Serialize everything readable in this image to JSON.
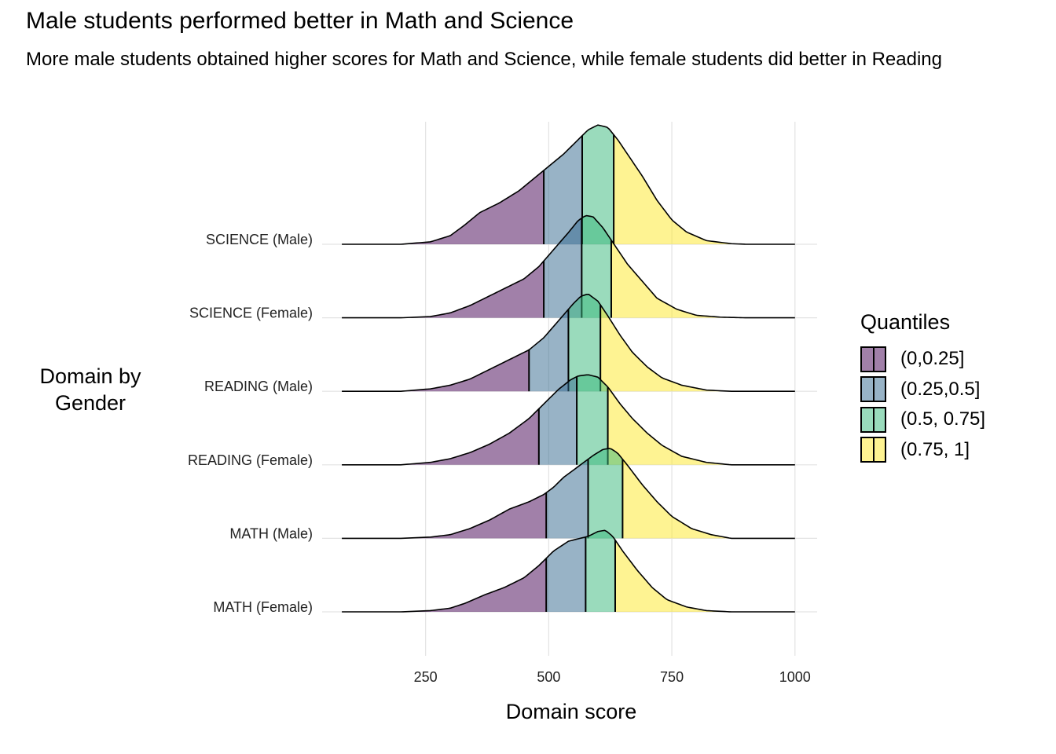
{
  "chart_data": {
    "type": "ridgeline",
    "title": "Male students performed better in Math and Science",
    "subtitle": "More male students obtained higher scores for Math and Science, while female students did better in Reading",
    "xlabel": "Domain score",
    "ylabel": "Domain by\nGender",
    "xlim": [
      40,
      1045
    ],
    "xticks": [
      250,
      500,
      750,
      1000
    ],
    "grid": true,
    "legend": {
      "title": "Quantiles",
      "position": "right",
      "entries": [
        {
          "label": "(0,0.25]",
          "color": "#440154"
        },
        {
          "label": "(0.25,0.5]",
          "color": "#31688E"
        },
        {
          "label": "(0.5, 0.75]",
          "color": "#35B779"
        },
        {
          "label": "(0.75, 1]",
          "color": "#FDE725"
        }
      ]
    },
    "fill_alpha": 0.5,
    "categories": [
      "SCIENCE (Male)",
      "SCIENCE (Female)",
      "READING (Male)",
      "READING (Female)",
      "MATH (Male)",
      "MATH (Female)"
    ],
    "series": [
      {
        "name": "SCIENCE (Male)",
        "range": [
          80,
          1000
        ],
        "quantiles": [
          490,
          568,
          632
        ],
        "density": [
          [
            80,
            0
          ],
          [
            200,
            0
          ],
          [
            260,
            0.02
          ],
          [
            300,
            0.07
          ],
          [
            330,
            0.16
          ],
          [
            360,
            0.26
          ],
          [
            400,
            0.34
          ],
          [
            440,
            0.44
          ],
          [
            470,
            0.54
          ],
          [
            500,
            0.64
          ],
          [
            530,
            0.74
          ],
          [
            560,
            0.86
          ],
          [
            580,
            0.94
          ],
          [
            600,
            0.98
          ],
          [
            620,
            0.96
          ],
          [
            640,
            0.86
          ],
          [
            660,
            0.74
          ],
          [
            690,
            0.56
          ],
          [
            720,
            0.36
          ],
          [
            750,
            0.2
          ],
          [
            780,
            0.1
          ],
          [
            820,
            0.03
          ],
          [
            870,
            0.005
          ],
          [
            900,
            0
          ],
          [
            1000,
            0
          ]
        ]
      },
      {
        "name": "SCIENCE (Female)",
        "range": [
          80,
          1000
        ],
        "quantiles": [
          490,
          567,
          627
        ],
        "density": [
          [
            80,
            0
          ],
          [
            200,
            0
          ],
          [
            260,
            0.01
          ],
          [
            300,
            0.04
          ],
          [
            340,
            0.1
          ],
          [
            380,
            0.18
          ],
          [
            420,
            0.26
          ],
          [
            450,
            0.32
          ],
          [
            480,
            0.42
          ],
          [
            510,
            0.56
          ],
          [
            540,
            0.7
          ],
          [
            560,
            0.8
          ],
          [
            575,
            0.84
          ],
          [
            590,
            0.83
          ],
          [
            610,
            0.74
          ],
          [
            630,
            0.62
          ],
          [
            660,
            0.44
          ],
          [
            690,
            0.3
          ],
          [
            720,
            0.16
          ],
          [
            760,
            0.07
          ],
          [
            800,
            0.02
          ],
          [
            850,
            0.005
          ],
          [
            900,
            0
          ],
          [
            1000,
            0
          ]
        ]
      },
      {
        "name": "READING (Male)",
        "range": [
          80,
          1000
        ],
        "quantiles": [
          460,
          540,
          605
        ],
        "density": [
          [
            80,
            0
          ],
          [
            200,
            0
          ],
          [
            260,
            0.02
          ],
          [
            300,
            0.05
          ],
          [
            340,
            0.1
          ],
          [
            380,
            0.18
          ],
          [
            420,
            0.26
          ],
          [
            460,
            0.34
          ],
          [
            490,
            0.44
          ],
          [
            520,
            0.58
          ],
          [
            550,
            0.72
          ],
          [
            565,
            0.78
          ],
          [
            580,
            0.8
          ],
          [
            600,
            0.74
          ],
          [
            620,
            0.62
          ],
          [
            645,
            0.46
          ],
          [
            670,
            0.32
          ],
          [
            700,
            0.2
          ],
          [
            730,
            0.11
          ],
          [
            770,
            0.05
          ],
          [
            820,
            0.01
          ],
          [
            870,
            0
          ],
          [
            1000,
            0
          ]
        ]
      },
      {
        "name": "READING (Female)",
        "range": [
          80,
          1000
        ],
        "quantiles": [
          480,
          557,
          620
        ],
        "density": [
          [
            80,
            0
          ],
          [
            200,
            0
          ],
          [
            260,
            0.02
          ],
          [
            300,
            0.05
          ],
          [
            340,
            0.1
          ],
          [
            380,
            0.17
          ],
          [
            420,
            0.26
          ],
          [
            460,
            0.38
          ],
          [
            490,
            0.5
          ],
          [
            520,
            0.62
          ],
          [
            545,
            0.7
          ],
          [
            560,
            0.73
          ],
          [
            580,
            0.74
          ],
          [
            600,
            0.72
          ],
          [
            620,
            0.64
          ],
          [
            645,
            0.5
          ],
          [
            670,
            0.38
          ],
          [
            700,
            0.26
          ],
          [
            730,
            0.16
          ],
          [
            770,
            0.07
          ],
          [
            820,
            0.02
          ],
          [
            870,
            0
          ],
          [
            1000,
            0
          ]
        ]
      },
      {
        "name": "MATH (Male)",
        "range": [
          80,
          1000
        ],
        "quantiles": [
          495,
          580,
          650
        ],
        "density": [
          [
            80,
            0
          ],
          [
            200,
            0
          ],
          [
            260,
            0.01
          ],
          [
            300,
            0.03
          ],
          [
            340,
            0.08
          ],
          [
            380,
            0.15
          ],
          [
            420,
            0.24
          ],
          [
            460,
            0.3
          ],
          [
            490,
            0.36
          ],
          [
            510,
            0.42
          ],
          [
            530,
            0.5
          ],
          [
            550,
            0.56
          ],
          [
            570,
            0.62
          ],
          [
            590,
            0.68
          ],
          [
            610,
            0.73
          ],
          [
            625,
            0.74
          ],
          [
            640,
            0.7
          ],
          [
            660,
            0.6
          ],
          [
            690,
            0.44
          ],
          [
            720,
            0.3
          ],
          [
            750,
            0.18
          ],
          [
            790,
            0.08
          ],
          [
            830,
            0.03
          ],
          [
            870,
            0
          ],
          [
            1000,
            0
          ]
        ]
      },
      {
        "name": "MATH (Female)",
        "range": [
          80,
          1000
        ],
        "quantiles": [
          495,
          575,
          635
        ],
        "density": [
          [
            80,
            0
          ],
          [
            200,
            0
          ],
          [
            260,
            0.01
          ],
          [
            300,
            0.03
          ],
          [
            330,
            0.07
          ],
          [
            370,
            0.14
          ],
          [
            410,
            0.2
          ],
          [
            450,
            0.28
          ],
          [
            480,
            0.38
          ],
          [
            510,
            0.5
          ],
          [
            540,
            0.58
          ],
          [
            560,
            0.6
          ],
          [
            580,
            0.62
          ],
          [
            600,
            0.66
          ],
          [
            615,
            0.67
          ],
          [
            630,
            0.62
          ],
          [
            650,
            0.5
          ],
          [
            680,
            0.34
          ],
          [
            710,
            0.2
          ],
          [
            740,
            0.1
          ],
          [
            780,
            0.04
          ],
          [
            820,
            0.01
          ],
          [
            870,
            0
          ],
          [
            1000,
            0
          ]
        ]
      }
    ]
  }
}
